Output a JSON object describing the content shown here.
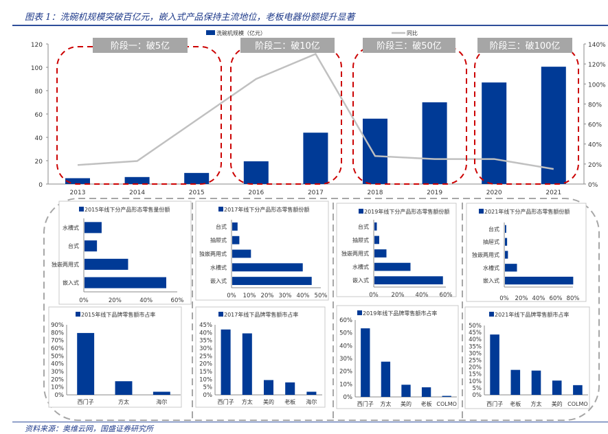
{
  "title": "图表 1：洗碗机规模突破百亿元，嵌入式产品保持主流地位，老板电器份额提升显著",
  "source": "资料来源：奥维云网，国盛证券研究所",
  "colors": {
    "bar": "#003a96",
    "line": "#c0c0c0",
    "stage_border": "#cc0000",
    "stage_label_bg": "#a6a6a6",
    "frame": "#a6a6a6"
  },
  "chart_data": [
    {
      "type": "bar+line",
      "id": "main",
      "legend": [
        "洗碗机规模（亿元）",
        "同比"
      ],
      "categories": [
        "2013",
        "2014",
        "2015",
        "2016",
        "2017",
        "2018",
        "2019",
        "2020",
        "2021"
      ],
      "series": [
        {
          "name": "洗碗机规模（亿元）",
          "type": "bar",
          "axis": "left",
          "values": [
            5,
            6,
            9.5,
            19.5,
            44,
            56,
            70,
            87,
            100.5
          ]
        },
        {
          "name": "同比",
          "type": "line",
          "axis": "right",
          "values": [
            19,
            23,
            64,
            105,
            130,
            28,
            25,
            25,
            15
          ]
        }
      ],
      "ylim": [
        0,
        120
      ],
      "y_ticks": [
        "0",
        "20",
        "40",
        "60",
        "80",
        "100",
        "120"
      ],
      "y2lim": [
        0,
        140
      ],
      "y2_ticks": [
        "0%",
        "20%",
        "40%",
        "60%",
        "80%",
        "100%",
        "120%",
        "140%"
      ],
      "stages": [
        {
          "label": "阶段一：破5亿",
          "categories": [
            "2013",
            "2014",
            "2015"
          ]
        },
        {
          "label": "阶段二：破10亿",
          "categories": [
            "2016",
            "2017"
          ]
        },
        {
          "label": "阶段三：破50亿",
          "categories": [
            "2018",
            "2019"
          ]
        },
        {
          "label": "阶段三：破100亿",
          "categories": [
            "2020",
            "2021"
          ]
        }
      ]
    },
    {
      "type": "bar-horizontal",
      "id": "p2015",
      "title": "2015年线下分产品形态零售量份额",
      "categories": [
        "水槽式",
        "台式",
        "独嵌两用式",
        "嵌入式"
      ],
      "values": [
        11,
        8,
        28,
        52.5
      ],
      "xlim": [
        0,
        60
      ],
      "x_ticks": [
        "0%",
        "20%",
        "40%",
        "60%"
      ]
    },
    {
      "type": "bar-horizontal",
      "id": "p2017",
      "title": "2017年线下分产品形态零售额份额",
      "categories": [
        "台式",
        "抽屉式",
        "独嵌两用式",
        "水槽式",
        "嵌入式"
      ],
      "values": [
        3,
        4,
        10.5,
        39.5,
        44.5
      ],
      "xlim": [
        0,
        50
      ],
      "x_ticks": [
        "0%",
        "10%",
        "20%",
        "30%",
        "40%",
        "50%"
      ]
    },
    {
      "type": "bar-horizontal",
      "id": "p2019",
      "title": "2019年线下分产品形态零售额份额",
      "categories": [
        "台式",
        "抽屉式",
        "独嵌两用式",
        "水槽式",
        "嵌入式"
      ],
      "values": [
        2,
        4,
        10,
        30,
        57
      ],
      "xlim": [
        0,
        60
      ],
      "x_ticks": [
        "0%",
        "20%",
        "40%",
        "60%"
      ]
    },
    {
      "type": "bar-horizontal",
      "id": "p2021",
      "title": "2021年线下分产品形态零售额份额",
      "categories": [
        "台式",
        "抽屉式",
        "独嵌两用式",
        "水槽式",
        "嵌入式"
      ],
      "values": [
        1.5,
        2.5,
        3.5,
        14,
        79.5
      ],
      "xlim": [
        0,
        80
      ],
      "x_ticks": [
        "0%",
        "20%",
        "40%",
        "60%",
        "80%"
      ]
    },
    {
      "type": "bar",
      "id": "b2015",
      "title": "2015年线下品牌零售额市占率",
      "categories": [
        "西门子",
        "方太",
        "海尔"
      ],
      "values": [
        79.5,
        17.5,
        4
      ],
      "ylim": [
        0,
        90
      ],
      "y_ticks": [
        "0%",
        "10%",
        "20%",
        "30%",
        "40%",
        "50%",
        "60%",
        "70%",
        "80%",
        "90%"
      ]
    },
    {
      "type": "bar",
      "id": "b2017",
      "title": "2017年线下品牌零售额市占率",
      "categories": [
        "西门子",
        "方太",
        "美的",
        "老板",
        "海尔"
      ],
      "values": [
        42,
        39.5,
        9.5,
        8,
        2
      ],
      "ylim": [
        0,
        45
      ],
      "y_ticks": [
        "0%",
        "5%",
        "10%",
        "15%",
        "20%",
        "25%",
        "30%",
        "35%",
        "40%",
        "45%"
      ]
    },
    {
      "type": "bar",
      "id": "b2019",
      "title": "2019年线下品牌零售额市占率",
      "categories": [
        "西门子",
        "方太",
        "美的",
        "老板",
        "COLMO"
      ],
      "values": [
        53.5,
        27.5,
        9.5,
        7.5,
        0.8
      ],
      "ylim": [
        0,
        60
      ],
      "y_ticks": [
        "0%",
        "10%",
        "20%",
        "30%",
        "40%",
        "50%",
        "60%"
      ]
    },
    {
      "type": "bar",
      "id": "b2021",
      "title": "2021年线下品牌零售额市占率",
      "categories": [
        "西门子",
        "老板",
        "方太",
        "美的",
        "COLMO"
      ],
      "values": [
        43.5,
        18,
        17.5,
        10.3,
        7
      ],
      "ylim": [
        0,
        50
      ],
      "y_ticks": [
        "0%",
        "5%",
        "10%",
        "15%",
        "20%",
        "25%",
        "30%",
        "35%",
        "40%",
        "45%",
        "50%"
      ]
    }
  ]
}
